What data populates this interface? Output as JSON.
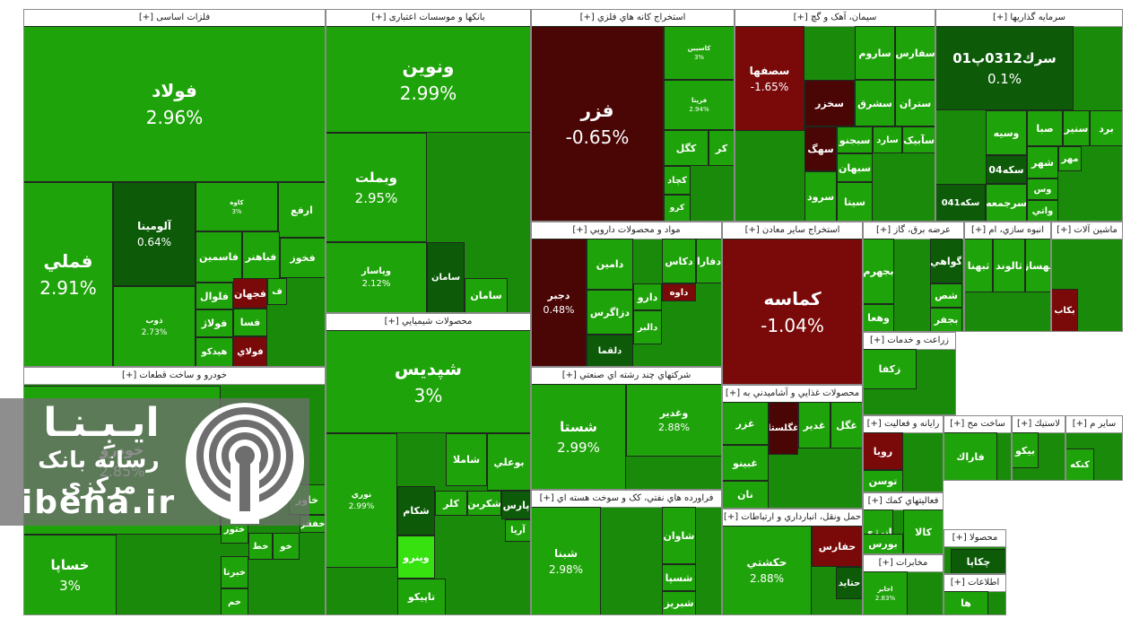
{
  "chart_data": {
    "type": "treemap",
    "sectors": [
      {
        "name": "فلزات اساسی [+]",
        "stocks": [
          {
            "name": "فولاد",
            "change": "2.96%"
          },
          {
            "name": "فملي",
            "change": "2.91%"
          },
          {
            "name": "آلومينا",
            "change": "0.64%"
          },
          {
            "name": "ذوب",
            "change": "2.73%"
          },
          {
            "name": "کاوه",
            "change": "3%"
          },
          {
            "name": "ارفع",
            "change": ""
          },
          {
            "name": "فاسمين",
            "change": ""
          },
          {
            "name": "فباهنر",
            "change": ""
          },
          {
            "name": "فخوز",
            "change": ""
          },
          {
            "name": "فجهان",
            "change": ""
          },
          {
            "name": "فلوال",
            "change": ""
          },
          {
            "name": "فسا",
            "change": ""
          },
          {
            "name": "فولاژ",
            "change": ""
          },
          {
            "name": "فولاي",
            "change": ""
          },
          {
            "name": "هيدکو",
            "change": ""
          },
          {
            "name": "ف",
            "change": ""
          }
        ]
      },
      {
        "name": "بانکها و موسسات اعتباری [+]",
        "stocks": [
          {
            "name": "ونوين",
            "change": "2.99%"
          },
          {
            "name": "وبملت",
            "change": "2.95%"
          },
          {
            "name": "وپاسار",
            "change": "2.12%"
          },
          {
            "name": "سامان",
            "change": ""
          }
        ]
      },
      {
        "name": "استخراج کانه هاي فلزي [+]",
        "stocks": [
          {
            "name": "فزر",
            "change": "-0.65%"
          },
          {
            "name": "کگل",
            "change": ""
          },
          {
            "name": "کچاد",
            "change": ""
          },
          {
            "name": "کر",
            "change": ""
          },
          {
            "name": "کرو",
            "change": ""
          },
          {
            "name": "کاسپين",
            "change": "3%"
          },
          {
            "name": "فرپنا",
            "change": "2.94%"
          }
        ]
      },
      {
        "name": "سيمان، آهک و گچ [+]",
        "stocks": [
          {
            "name": "سصفها",
            "change": "-1.65%"
          },
          {
            "name": "ساروم",
            "change": ""
          },
          {
            "name": "سفارس",
            "change": ""
          },
          {
            "name": "سخزر",
            "change": ""
          },
          {
            "name": "سشرق",
            "change": ""
          },
          {
            "name": "ستران",
            "change": ""
          },
          {
            "name": "سهگ",
            "change": ""
          },
          {
            "name": "سبجنو",
            "change": ""
          },
          {
            "name": "سارد",
            "change": ""
          },
          {
            "name": "سآبيک",
            "change": ""
          },
          {
            "name": "سبهان",
            "change": ""
          },
          {
            "name": "سيتا",
            "change": ""
          },
          {
            "name": "سرود",
            "change": ""
          }
        ]
      },
      {
        "name": "سرمايه گذاريها [+]",
        "stocks": [
          {
            "name": "سرك0312پ01",
            "change": "0.1%"
          },
          {
            "name": "وسيه",
            "change": ""
          },
          {
            "name": "صبا",
            "change": ""
          },
          {
            "name": "سنير",
            "change": ""
          },
          {
            "name": "برد",
            "change": ""
          },
          {
            "name": "شهر",
            "change": ""
          },
          {
            "name": "مهر",
            "change": ""
          },
          {
            "name": "سكه04",
            "change": ""
          },
          {
            "name": "وس",
            "change": ""
          },
          {
            "name": "سكه041",
            "change": ""
          },
          {
            "name": "سرجمعه",
            "change": ""
          },
          {
            "name": "واتي",
            "change": ""
          }
        ]
      },
      {
        "name": "خودرو و ساخت قطعات [+]",
        "stocks": [
          {
            "name": "خساپا",
            "change": "3%"
          },
          {
            "name": "خودرو",
            "change": "2.85%"
          },
          {
            "name": "خاور",
            "change": ""
          },
          {
            "name": "خفقر",
            "change": ""
          },
          {
            "name": "ختور",
            "change": ""
          },
          {
            "name": "خبرنا",
            "change": ""
          },
          {
            "name": "خط",
            "change": ""
          },
          {
            "name": "خو",
            "change": ""
          },
          {
            "name": "خم",
            "change": ""
          }
        ]
      },
      {
        "name": "محصولات شيميايي [+]",
        "stocks": [
          {
            "name": "شپديس",
            "change": "3%"
          },
          {
            "name": "نوري",
            "change": "2.99%"
          },
          {
            "name": "شاملا",
            "change": ""
          },
          {
            "name": "بوعلي",
            "change": ""
          },
          {
            "name": "شکام",
            "change": ""
          },
          {
            "name": "کلر",
            "change": ""
          },
          {
            "name": "شکربن",
            "change": ""
          },
          {
            "name": "پارس",
            "change": ""
          },
          {
            "name": "وينرو",
            "change": ""
          },
          {
            "name": "تاپيکو",
            "change": ""
          },
          {
            "name": "آريا",
            "change": ""
          }
        ]
      },
      {
        "name": "مواد و محصولات دارويي [+]",
        "stocks": [
          {
            "name": "دجبر",
            "change": "0.48%"
          },
          {
            "name": "دامين",
            "change": ""
          },
          {
            "name": "دفارا",
            "change": ""
          },
          {
            "name": "دکاس",
            "change": ""
          },
          {
            "name": "دزاگرس",
            "change": ""
          },
          {
            "name": "داوه",
            "change": ""
          },
          {
            "name": "دارو",
            "change": ""
          },
          {
            "name": "دالبر",
            "change": ""
          },
          {
            "name": "دلقما",
            "change": ""
          }
        ]
      },
      {
        "name": "استخراج ساير معادن [+]",
        "stocks": [
          {
            "name": "کماسه",
            "change": "-1.04%"
          }
        ]
      },
      {
        "name": "عرضه برق، گاز [+]",
        "stocks": [
          {
            "name": "بجهرم",
            "change": ""
          },
          {
            "name": "وهعا",
            "change": ""
          },
          {
            "name": "گواهي",
            "change": ""
          },
          {
            "name": "شص",
            "change": ""
          },
          {
            "name": "بجفر",
            "change": ""
          }
        ]
      },
      {
        "name": "انبوه سازي، ام [+]",
        "stocks": [
          {
            "name": "ثبهنا",
            "change": ""
          },
          {
            "name": "ثالوند",
            "change": ""
          },
          {
            "name": "تهساز",
            "change": ""
          }
        ]
      },
      {
        "name": "ماشين آلات [+]",
        "stocks": [
          {
            "name": "بكاب",
            "change": ""
          }
        ]
      },
      {
        "name": "شرکتهاي چند رشته اي صنعتي [+]",
        "stocks": [
          {
            "name": "شستا",
            "change": "2.99%"
          },
          {
            "name": "وغدير",
            "change": "2.88%"
          }
        ]
      },
      {
        "name": "محصولات غذايي و آشاميدني به [+]",
        "stocks": [
          {
            "name": "غزر",
            "change": ""
          },
          {
            "name": "غبينو",
            "change": ""
          },
          {
            "name": "غگلستا",
            "change": ""
          },
          {
            "name": "غدير",
            "change": ""
          },
          {
            "name": "غگل",
            "change": ""
          },
          {
            "name": "نان",
            "change": ""
          }
        ]
      },
      {
        "name": "زراعت و خدمات [+]",
        "stocks": [
          {
            "name": "زکفا",
            "change": ""
          }
        ]
      },
      {
        "name": "فراورده هاي نفتي، کک و سوخت هسته اي [+]",
        "stocks": [
          {
            "name": "شبنا",
            "change": "2.98%"
          },
          {
            "name": "شاوان",
            "change": ""
          },
          {
            "name": "شسپا",
            "change": ""
          },
          {
            "name": "شبريز",
            "change": ""
          }
        ]
      },
      {
        "name": "حمل ونقل، انبارداري و ارتباطات [+]",
        "stocks": [
          {
            "name": "حکشتي",
            "change": "2.88%"
          },
          {
            "name": "حفارس",
            "change": ""
          },
          {
            "name": "حتايد",
            "change": ""
          }
        ]
      },
      {
        "name": "رايانه و فعاليت [+]",
        "stocks": [
          {
            "name": "رويا",
            "change": ""
          },
          {
            "name": "توسن",
            "change": ""
          }
        ]
      },
      {
        "name": "ساخت مح [+]",
        "stocks": [
          {
            "name": "فاراك",
            "change": ""
          }
        ]
      },
      {
        "name": "لاستيك [+]",
        "stocks": [
          {
            "name": "بيكو",
            "change": ""
          }
        ]
      },
      {
        "name": "ساير م [+]",
        "stocks": [
          {
            "name": "كنكه",
            "change": ""
          }
        ]
      },
      {
        "name": "فعاليتهاي كمك [+]",
        "stocks": [
          {
            "name": "انرژي",
            "change": ""
          },
          {
            "name": "بورس",
            "change": ""
          },
          {
            "name": "كالا",
            "change": ""
          }
        ]
      },
      {
        "name": "مخابرات [+]",
        "stocks": [
          {
            "name": "اخابر",
            "change": "2.83%"
          }
        ]
      },
      {
        "name": "محصولا [+]",
        "stocks": [
          {
            "name": "چكاپا",
            "change": ""
          }
        ]
      },
      {
        "name": "اطلاعات [+]",
        "stocks": [
          {
            "name": "ها",
            "change": ""
          }
        ]
      }
    ]
  },
  "watermark": {
    "title": "ايـبِـنـا",
    "subtitle": "رسانه بانک مرکزی",
    "url": "ibena.ir"
  }
}
